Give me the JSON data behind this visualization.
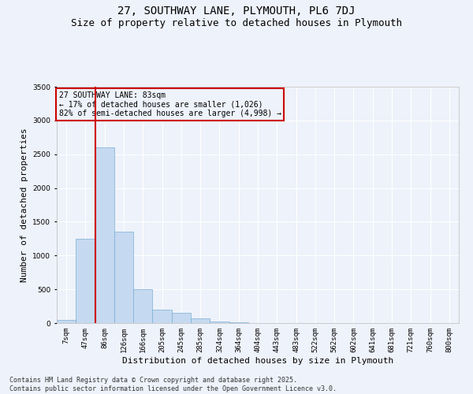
{
  "title": "27, SOUTHWAY LANE, PLYMOUTH, PL6 7DJ",
  "subtitle": "Size of property relative to detached houses in Plymouth",
  "xlabel": "Distribution of detached houses by size in Plymouth",
  "ylabel": "Number of detached properties",
  "categories": [
    "7sqm",
    "47sqm",
    "86sqm",
    "126sqm",
    "166sqm",
    "205sqm",
    "245sqm",
    "285sqm",
    "324sqm",
    "364sqm",
    "404sqm",
    "443sqm",
    "483sqm",
    "522sqm",
    "562sqm",
    "602sqm",
    "641sqm",
    "681sqm",
    "721sqm",
    "760sqm",
    "800sqm"
  ],
  "values": [
    50,
    1250,
    2600,
    1350,
    500,
    200,
    150,
    75,
    25,
    8,
    3,
    2,
    1,
    0,
    0,
    0,
    0,
    0,
    0,
    0,
    0
  ],
  "bar_color": "#c5d9f0",
  "bar_edge_color": "#7bafd4",
  "red_line_x": 1.5,
  "marker_color": "#cc0000",
  "annotation_text": "27 SOUTHWAY LANE: 83sqm\n← 17% of detached houses are smaller (1,026)\n82% of semi-detached houses are larger (4,998) →",
  "annotation_box_color": "#cc0000",
  "ylim": [
    0,
    3500
  ],
  "yticks": [
    0,
    500,
    1000,
    1500,
    2000,
    2500,
    3000,
    3500
  ],
  "background_color": "#eef2fa",
  "grid_color": "#ffffff",
  "footer_text": "Contains HM Land Registry data © Crown copyright and database right 2025.\nContains public sector information licensed under the Open Government Licence v3.0.",
  "title_fontsize": 10,
  "subtitle_fontsize": 9,
  "axis_label_fontsize": 8,
  "tick_fontsize": 6.5,
  "annotation_fontsize": 7,
  "footer_fontsize": 6
}
